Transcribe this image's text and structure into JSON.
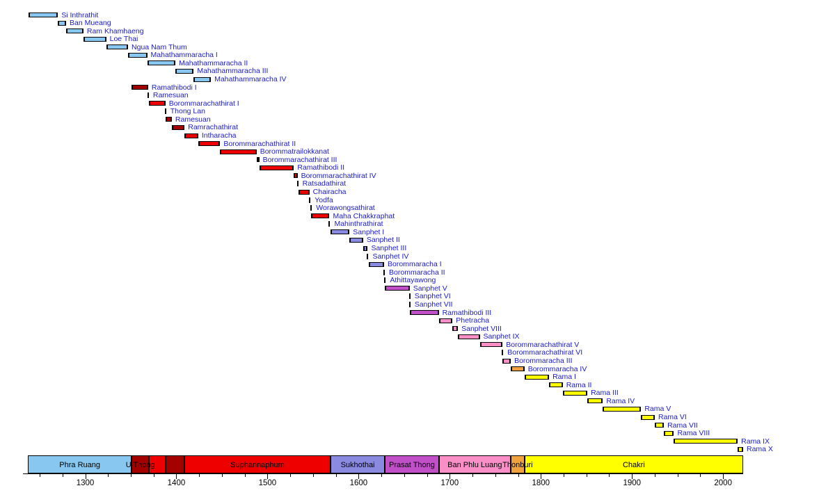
{
  "chart_data": {
    "type": "timeline",
    "axis": {
      "unit": "year",
      "min": 1237,
      "max": 2022,
      "major_ticks": [
        1300,
        1400,
        1500,
        1600,
        1700,
        1800,
        1900,
        2000
      ],
      "minor_tick_step": 25,
      "grid": false,
      "legend_position": "bottom-band"
    },
    "colors": {
      "phra_ruang": "#87C7F0",
      "u_thong": "#A40000",
      "suphannaphum": "#EE0000",
      "sukhothai": "#8A8AE0",
      "prasat_thong": "#C04FC8",
      "ban_phlu_luang": "#F98FC6",
      "thonburi": "#F0A23E",
      "chakri": "#FFFF00",
      "reign_label_text": "#1A1ACD",
      "band_label_text": "#000000",
      "axis": "#000000"
    },
    "reigns": [
      {
        "label": "Si Inthrathit",
        "start": 1238,
        "end": 1270,
        "dynasty": "phra_ruang"
      },
      {
        "label": "Ban Mueang",
        "start": 1270,
        "end": 1279,
        "dynasty": "phra_ruang"
      },
      {
        "label": "Ram Khamhaeng",
        "start": 1279,
        "end": 1298,
        "dynasty": "phra_ruang"
      },
      {
        "label": "Loe Thai",
        "start": 1298,
        "end": 1323,
        "dynasty": "phra_ruang"
      },
      {
        "label": "Ngua Nam Thum",
        "start": 1323,
        "end": 1347,
        "dynasty": "phra_ruang"
      },
      {
        "label": "Mahathammaracha I",
        "start": 1347,
        "end": 1368,
        "dynasty": "phra_ruang"
      },
      {
        "label": "Mahathammaracha II",
        "start": 1368,
        "end": 1399,
        "dynasty": "phra_ruang"
      },
      {
        "label": "Mahathammaracha III",
        "start": 1399,
        "end": 1419,
        "dynasty": "phra_ruang"
      },
      {
        "label": "Mahathammaracha IV",
        "start": 1419,
        "end": 1438,
        "dynasty": "phra_ruang"
      },
      {
        "label": "Ramathibodi I",
        "start": 1351,
        "end": 1369,
        "dynasty": "u_thong"
      },
      {
        "label": "Ramesuan",
        "start": 1369,
        "end": 1370,
        "dynasty": "u_thong"
      },
      {
        "label": "Borommarachathirat I",
        "start": 1370,
        "end": 1388,
        "dynasty": "suphannaphum"
      },
      {
        "label": "Thong Lan",
        "start": 1388,
        "end": 1388,
        "dynasty": "suphannaphum"
      },
      {
        "label": "Ramesuan",
        "start": 1388,
        "end": 1395,
        "dynasty": "u_thong"
      },
      {
        "label": "Ramrachathirat",
        "start": 1395,
        "end": 1409,
        "dynasty": "u_thong"
      },
      {
        "label": "Intharacha",
        "start": 1409,
        "end": 1424,
        "dynasty": "suphannaphum"
      },
      {
        "label": "Borommarachathirat II",
        "start": 1424,
        "end": 1448,
        "dynasty": "suphannaphum"
      },
      {
        "label": "Borommatrailokkanat",
        "start": 1448,
        "end": 1488,
        "dynasty": "suphannaphum"
      },
      {
        "label": "Borommarachathirat III",
        "start": 1488,
        "end": 1491,
        "dynasty": "suphannaphum"
      },
      {
        "label": "Ramathibodi II",
        "start": 1491,
        "end": 1529,
        "dynasty": "suphannaphum"
      },
      {
        "label": "Borommarachathirat IV",
        "start": 1529,
        "end": 1533,
        "dynasty": "suphannaphum"
      },
      {
        "label": "Ratsadathirat",
        "start": 1533,
        "end": 1534,
        "dynasty": "suphannaphum"
      },
      {
        "label": "Chairacha",
        "start": 1534,
        "end": 1546,
        "dynasty": "suphannaphum"
      },
      {
        "label": "Yodfa",
        "start": 1546,
        "end": 1548,
        "dynasty": "suphannaphum"
      },
      {
        "label": "Worawongsathirat",
        "start": 1548,
        "end": 1548,
        "dynasty": "suphannaphum"
      },
      {
        "label": "Maha Chakkraphat",
        "start": 1548,
        "end": 1568,
        "dynasty": "suphannaphum"
      },
      {
        "label": "Mahinthrathirat",
        "start": 1568,
        "end": 1569,
        "dynasty": "suphannaphum"
      },
      {
        "label": "Sanphet I",
        "start": 1569,
        "end": 1590,
        "dynasty": "sukhothai"
      },
      {
        "label": "Sanphet II",
        "start": 1590,
        "end": 1605,
        "dynasty": "sukhothai"
      },
      {
        "label": "Sanphet III",
        "start": 1605,
        "end": 1610,
        "dynasty": "sukhothai"
      },
      {
        "label": "Sanphet IV",
        "start": 1610,
        "end": 1611,
        "dynasty": "sukhothai"
      },
      {
        "label": "Borommaracha I",
        "start": 1611,
        "end": 1628,
        "dynasty": "sukhothai"
      },
      {
        "label": "Borommaracha II",
        "start": 1628,
        "end": 1629,
        "dynasty": "sukhothai"
      },
      {
        "label": "Athittayawong",
        "start": 1629,
        "end": 1629,
        "dynasty": "sukhothai"
      },
      {
        "label": "Sanphet V",
        "start": 1629,
        "end": 1656,
        "dynasty": "prasat_thong"
      },
      {
        "label": "Sanphet VI",
        "start": 1656,
        "end": 1656,
        "dynasty": "prasat_thong"
      },
      {
        "label": "Sanphet VII",
        "start": 1656,
        "end": 1656,
        "dynasty": "prasat_thong"
      },
      {
        "label": "Ramathibodi III",
        "start": 1656,
        "end": 1688,
        "dynasty": "prasat_thong"
      },
      {
        "label": "Phetracha",
        "start": 1688,
        "end": 1703,
        "dynasty": "ban_phlu_luang"
      },
      {
        "label": "Sanphet VIII",
        "start": 1703,
        "end": 1709,
        "dynasty": "ban_phlu_luang"
      },
      {
        "label": "Sanphet IX",
        "start": 1709,
        "end": 1733,
        "dynasty": "ban_phlu_luang"
      },
      {
        "label": "Borommarachathirat V",
        "start": 1733,
        "end": 1758,
        "dynasty": "ban_phlu_luang"
      },
      {
        "label": "Borommarachathirat VI",
        "start": 1758,
        "end": 1758,
        "dynasty": "ban_phlu_luang"
      },
      {
        "label": "Borommaracha III",
        "start": 1758,
        "end": 1767,
        "dynasty": "ban_phlu_luang"
      },
      {
        "label": "Borommaracha IV",
        "start": 1767,
        "end": 1782,
        "dynasty": "thonburi"
      },
      {
        "label": "Rama I",
        "start": 1782,
        "end": 1809,
        "dynasty": "chakri"
      },
      {
        "label": "Rama II",
        "start": 1809,
        "end": 1824,
        "dynasty": "chakri"
      },
      {
        "label": "Rama III",
        "start": 1824,
        "end": 1851,
        "dynasty": "chakri"
      },
      {
        "label": "Rama IV",
        "start": 1851,
        "end": 1868,
        "dynasty": "chakri"
      },
      {
        "label": "Rama V",
        "start": 1868,
        "end": 1910,
        "dynasty": "chakri"
      },
      {
        "label": "Rama VI",
        "start": 1910,
        "end": 1925,
        "dynasty": "chakri"
      },
      {
        "label": "Rama VII",
        "start": 1925,
        "end": 1935,
        "dynasty": "chakri"
      },
      {
        "label": "Rama VIII",
        "start": 1935,
        "end": 1946,
        "dynasty": "chakri"
      },
      {
        "label": "Rama IX",
        "start": 1946,
        "end": 2016,
        "dynasty": "chakri"
      },
      {
        "label": "Rama X",
        "start": 2016,
        "end": 2022,
        "dynasty": "chakri"
      }
    ],
    "dynasty_band": [
      {
        "label": "Phra Ruang",
        "start": 1237,
        "end": 1351,
        "dynasty": "phra_ruang"
      },
      {
        "label": "U Thong",
        "start": 1351,
        "end": 1370,
        "dynasty": "u_thong"
      },
      {
        "label": "",
        "start": 1370,
        "end": 1388,
        "dynasty": "suphannaphum"
      },
      {
        "label": "",
        "start": 1388,
        "end": 1409,
        "dynasty": "u_thong"
      },
      {
        "label": "Suphannaphum",
        "start": 1409,
        "end": 1569,
        "dynasty": "suphannaphum"
      },
      {
        "label": "Sukhothai",
        "start": 1569,
        "end": 1629,
        "dynasty": "sukhothai"
      },
      {
        "label": "Prasat Thong",
        "start": 1629,
        "end": 1688,
        "dynasty": "prasat_thong"
      },
      {
        "label": "Ban Phlu Luang",
        "start": 1688,
        "end": 1767,
        "dynasty": "ban_phlu_luang"
      },
      {
        "label": "Thonburi",
        "start": 1767,
        "end": 1782,
        "dynasty": "thonburi"
      },
      {
        "label": "Chakri",
        "start": 1782,
        "end": 2022,
        "dynasty": "chakri"
      }
    ]
  }
}
